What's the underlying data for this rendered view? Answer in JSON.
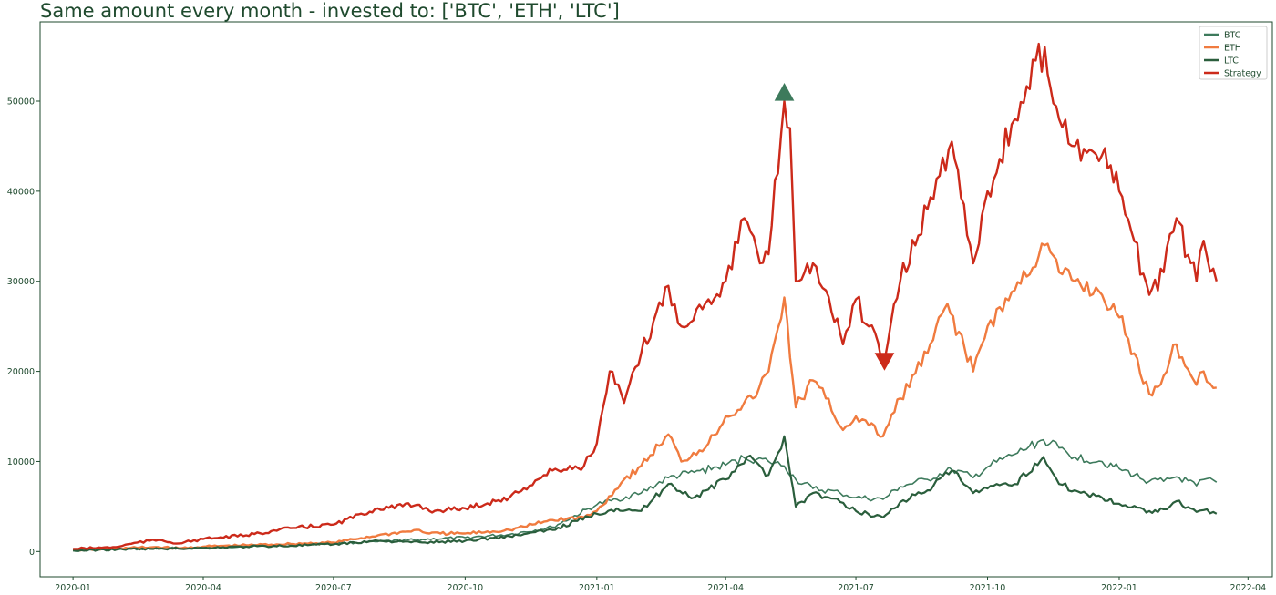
{
  "chart_data": {
    "type": "line",
    "title": "Same amount every month - invested to: ['BTC', 'ETH', 'LTC']",
    "xlabel": "",
    "ylabel": "",
    "xlim": [
      "2019-12-09",
      "2022-04-18"
    ],
    "ylim": [
      -2800,
      58800
    ],
    "grid": false,
    "legend_position": "top-right",
    "x_ticks": [
      "2020-01",
      "2020-04",
      "2020-07",
      "2020-10",
      "2021-01",
      "2021-04",
      "2021-07",
      "2021-10",
      "2022-01",
      "2022-04"
    ],
    "y_ticks": [
      0,
      10000,
      20000,
      30000,
      40000,
      50000
    ],
    "series": [
      {
        "name": "BTC",
        "color": "#3d7a5c",
        "x": [
          "2020-01-01",
          "2020-02-01",
          "2020-03-01",
          "2020-04-01",
          "2020-05-01",
          "2020-06-01",
          "2020-07-01",
          "2020-08-01",
          "2020-09-01",
          "2020-10-01",
          "2020-11-01",
          "2020-12-01",
          "2021-01-01",
          "2021-01-15",
          "2021-02-01",
          "2021-02-20",
          "2021-03-10",
          "2021-04-01",
          "2021-04-14",
          "2021-05-01",
          "2021-05-12",
          "2021-05-20",
          "2021-06-01",
          "2021-06-20",
          "2021-07-01",
          "2021-07-20",
          "2021-08-01",
          "2021-08-20",
          "2021-09-06",
          "2021-09-21",
          "2021-10-01",
          "2021-10-20",
          "2021-11-09",
          "2021-11-20",
          "2021-12-01",
          "2021-12-20",
          "2022-01-01",
          "2022-01-22",
          "2022-02-01",
          "2022-02-10",
          "2022-02-24",
          "2022-03-01",
          "2022-03-10"
        ],
        "values": [
          100,
          200,
          350,
          450,
          600,
          750,
          900,
          1100,
          1350,
          1550,
          1900,
          2700,
          5200,
          5800,
          6500,
          8200,
          8800,
          9600,
          10400,
          10000,
          9500,
          8000,
          7000,
          6500,
          6000,
          5800,
          7200,
          8000,
          9100,
          8200,
          9400,
          10800,
          12400,
          11500,
          10500,
          10000,
          9200,
          7800,
          7800,
          8300,
          7300,
          8000,
          7700
        ]
      },
      {
        "name": "ETH",
        "color": "#f07b3f",
        "x": [
          "2020-01-01",
          "2020-02-01",
          "2020-03-01",
          "2020-03-15",
          "2020-04-01",
          "2020-05-01",
          "2020-06-01",
          "2020-07-01",
          "2020-08-01",
          "2020-08-30",
          "2020-09-06",
          "2020-10-01",
          "2020-11-01",
          "2020-12-01",
          "2020-12-23",
          "2021-01-01",
          "2021-01-20",
          "2021-02-01",
          "2021-02-20",
          "2021-03-01",
          "2021-03-20",
          "2021-04-01",
          "2021-04-20",
          "2021-05-01",
          "2021-05-12",
          "2021-05-20",
          "2021-06-01",
          "2021-06-10",
          "2021-06-22",
          "2021-07-01",
          "2021-07-10",
          "2021-07-20",
          "2021-08-01",
          "2021-08-20",
          "2021-09-03",
          "2021-09-21",
          "2021-10-01",
          "2021-10-20",
          "2021-11-10",
          "2021-11-20",
          "2021-12-01",
          "2021-12-20",
          "2022-01-01",
          "2022-01-22",
          "2022-02-01",
          "2022-02-10",
          "2022-02-24",
          "2022-03-01",
          "2022-03-10"
        ],
        "values": [
          150,
          350,
          500,
          350,
          550,
          700,
          850,
          1000,
          1800,
          2400,
          2000,
          2000,
          2400,
          3500,
          3800,
          4500,
          8000,
          9500,
          13000,
          10000,
          12000,
          15000,
          17000,
          20000,
          28200,
          16000,
          19000,
          17000,
          13500,
          15000,
          14000,
          12800,
          17000,
          22000,
          27500,
          20000,
          25000,
          29000,
          34000,
          31000,
          30000,
          28500,
          26000,
          17500,
          19500,
          23000,
          18500,
          20000,
          18200
        ]
      },
      {
        "name": "LTC",
        "color": "#2a5e3c",
        "x": [
          "2020-01-01",
          "2020-02-01",
          "2020-03-01",
          "2020-04-01",
          "2020-05-01",
          "2020-06-01",
          "2020-07-01",
          "2020-08-01",
          "2020-09-01",
          "2020-10-01",
          "2020-11-01",
          "2020-12-01",
          "2021-01-01",
          "2021-01-15",
          "2021-02-01",
          "2021-02-20",
          "2021-03-10",
          "2021-04-01",
          "2021-04-16",
          "2021-05-01",
          "2021-05-12",
          "2021-05-20",
          "2021-06-01",
          "2021-06-20",
          "2021-07-01",
          "2021-07-20",
          "2021-08-01",
          "2021-08-20",
          "2021-09-06",
          "2021-09-21",
          "2021-10-01",
          "2021-10-20",
          "2021-11-09",
          "2021-11-20",
          "2021-12-01",
          "2021-12-20",
          "2022-01-01",
          "2022-01-22",
          "2022-02-01",
          "2022-02-10",
          "2022-02-24",
          "2022-03-01",
          "2022-03-10"
        ],
        "values": [
          100,
          250,
          300,
          400,
          550,
          650,
          800,
          1200,
          1000,
          1200,
          1700,
          2400,
          4200,
          4800,
          4500,
          7500,
          6000,
          8000,
          10500,
          8500,
          12800,
          5000,
          6500,
          5500,
          4500,
          3800,
          5500,
          6800,
          9000,
          6500,
          7000,
          7500,
          10500,
          7500,
          6800,
          6000,
          5300,
          4500,
          4700,
          5600,
          4400,
          4600,
          4200
        ]
      },
      {
        "name": "Strategy",
        "color": "#cc2a1a",
        "x": [
          "2020-01-01",
          "2020-01-31",
          "2020-02-15",
          "2020-03-01",
          "2020-03-15",
          "2020-04-01",
          "2020-05-01",
          "2020-06-01",
          "2020-07-01",
          "2020-08-01",
          "2020-08-30",
          "2020-09-06",
          "2020-10-01",
          "2020-11-01",
          "2020-12-01",
          "2020-12-23",
          "2021-01-01",
          "2021-01-10",
          "2021-01-20",
          "2021-02-01",
          "2021-02-20",
          "2021-03-01",
          "2021-03-20",
          "2021-04-01",
          "2021-04-14",
          "2021-04-25",
          "2021-05-01",
          "2021-05-12",
          "2021-05-16",
          "2021-05-20",
          "2021-06-01",
          "2021-06-10",
          "2021-06-22",
          "2021-07-01",
          "2021-07-10",
          "2021-07-21",
          "2021-08-01",
          "2021-08-20",
          "2021-09-06",
          "2021-09-21",
          "2021-10-01",
          "2021-10-20",
          "2021-11-10",
          "2021-11-20",
          "2021-12-01",
          "2021-12-20",
          "2022-01-01",
          "2022-01-22",
          "2022-02-01",
          "2022-02-10",
          "2022-02-24",
          "2022-03-01",
          "2022-03-10"
        ],
        "values": [
          300,
          500,
          1000,
          1300,
          900,
          1400,
          1800,
          2600,
          3000,
          4800,
          5200,
          4500,
          4800,
          6000,
          9000,
          9500,
          12000,
          20000,
          16500,
          22000,
          29500,
          25000,
          28000,
          30000,
          37000,
          32000,
          33000,
          50000,
          47000,
          30000,
          32000,
          29000,
          23000,
          28000,
          25000,
          21200,
          30000,
          38000,
          45500,
          32000,
          40000,
          48000,
          56000,
          48000,
          45000,
          44000,
          40000,
          28500,
          31000,
          37000,
          30000,
          34500,
          30000
        ]
      }
    ],
    "annotations": [
      {
        "type": "buy-marker",
        "x": "2021-05-12",
        "y": 50800,
        "color": "#3d7a5c"
      },
      {
        "type": "sell-marker",
        "x": "2021-07-21",
        "y": 21200,
        "color": "#cc2a1a"
      }
    ]
  }
}
